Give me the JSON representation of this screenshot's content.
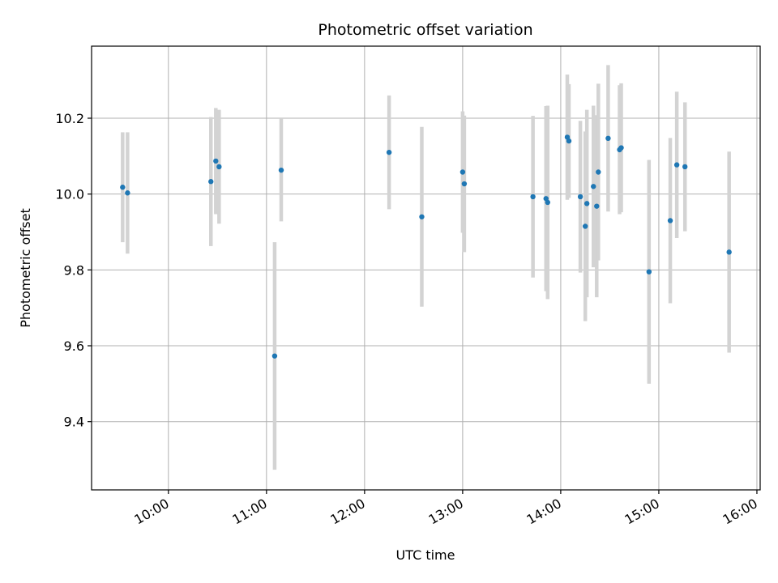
{
  "chart_data": {
    "type": "scatter",
    "title": "Photometric offset variation",
    "xlabel": "UTC time",
    "ylabel": "Photometric offset",
    "xlim": [
      "09:13",
      "16:02"
    ],
    "ylim": [
      9.22,
      10.39
    ],
    "grid": true,
    "x_ticks": [
      "10:00",
      "11:00",
      "12:00",
      "13:00",
      "14:00",
      "15:00",
      "16:00"
    ],
    "y_ticks": [
      9.4,
      9.6,
      9.8,
      10.0,
      10.2
    ],
    "y_tick_labels": [
      "9.4",
      "9.6",
      "9.8",
      "10.0",
      "10.2"
    ],
    "colors": {
      "points": "#1f77b4",
      "error_bars": "#d3d3d3",
      "grid": "#b0b0b0"
    },
    "points": [
      {
        "x": "09:32",
        "y": 10.018,
        "err": 0.145
      },
      {
        "x": "09:35",
        "y": 10.003,
        "err": 0.16
      },
      {
        "x": "10:26",
        "y": 10.033,
        "err": 0.17
      },
      {
        "x": "10:29",
        "y": 10.087,
        "err": 0.14
      },
      {
        "x": "10:31",
        "y": 10.072,
        "err": 0.15
      },
      {
        "x": "11:05",
        "y": 9.573,
        "err": 0.3
      },
      {
        "x": "11:09",
        "y": 10.063,
        "err": 0.135
      },
      {
        "x": "12:15",
        "y": 10.11,
        "err": 0.15
      },
      {
        "x": "12:35",
        "y": 9.94,
        "err": 0.237
      },
      {
        "x": "13:00",
        "y": 10.058,
        "err": 0.16
      },
      {
        "x": "13:01",
        "y": 10.027,
        "err": 0.18
      },
      {
        "x": "13:43",
        "y": 9.993,
        "err": 0.213
      },
      {
        "x": "13:51",
        "y": 9.988,
        "err": 0.244
      },
      {
        "x": "13:52",
        "y": 9.978,
        "err": 0.255
      },
      {
        "x": "14:04",
        "y": 10.15,
        "err": 0.165
      },
      {
        "x": "14:05",
        "y": 10.14,
        "err": 0.15
      },
      {
        "x": "14:12",
        "y": 9.993,
        "err": 0.2
      },
      {
        "x": "14:15",
        "y": 9.915,
        "err": 0.25
      },
      {
        "x": "14:16",
        "y": 9.975,
        "err": 0.247
      },
      {
        "x": "14:20",
        "y": 10.02,
        "err": 0.213
      },
      {
        "x": "14:22",
        "y": 9.968,
        "err": 0.24
      },
      {
        "x": "14:23",
        "y": 10.058,
        "err": 0.233
      },
      {
        "x": "14:29",
        "y": 10.147,
        "err": 0.193
      },
      {
        "x": "14:36",
        "y": 10.117,
        "err": 0.17
      },
      {
        "x": "14:37",
        "y": 10.122,
        "err": 0.17
      },
      {
        "x": "14:54",
        "y": 9.795,
        "err": 0.295
      },
      {
        "x": "15:07",
        "y": 9.93,
        "err": 0.218
      },
      {
        "x": "15:11",
        "y": 10.077,
        "err": 0.193
      },
      {
        "x": "15:16",
        "y": 10.072,
        "err": 0.17
      },
      {
        "x": "15:43",
        "y": 9.847,
        "err": 0.265
      }
    ]
  }
}
